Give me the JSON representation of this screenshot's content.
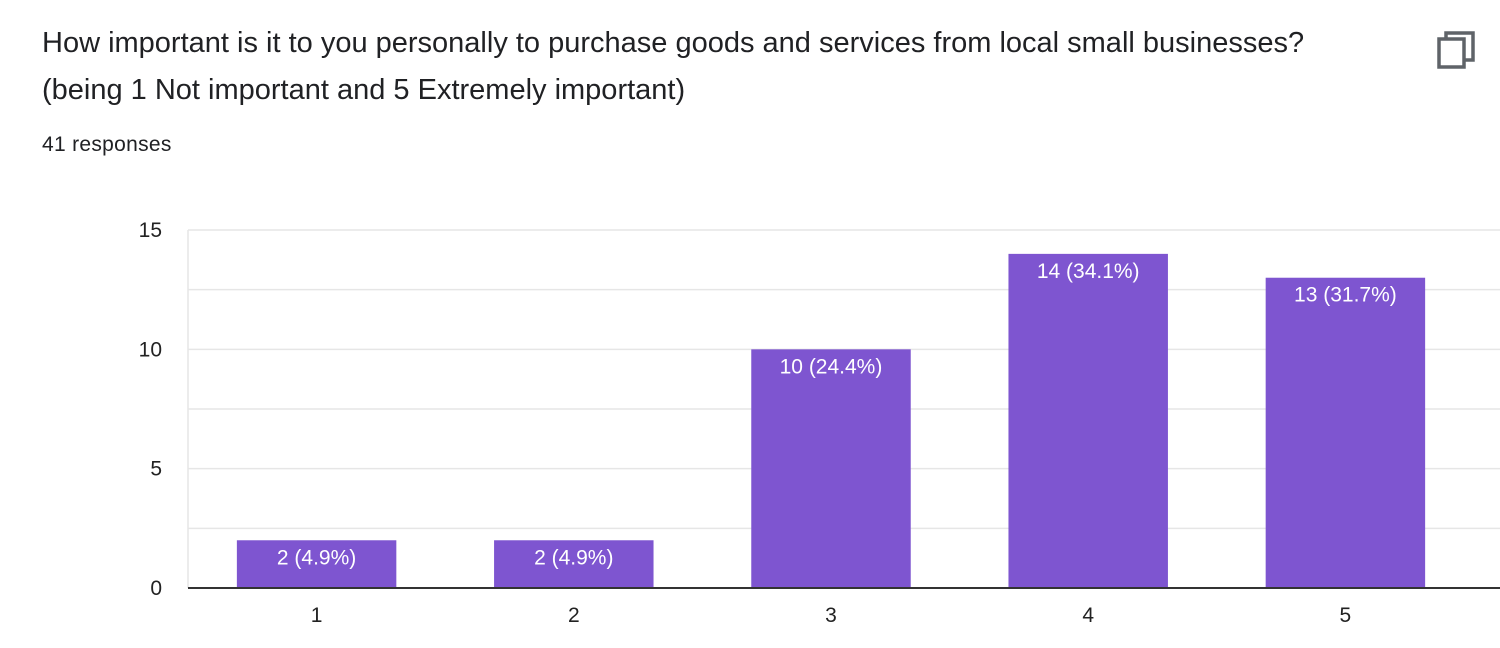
{
  "question": {
    "title": "How important is it to you personally to purchase goods and services from local small businesses? (being 1 Not important and 5 Extremely important)",
    "response_count": "41 responses",
    "copy_icon": "copy-icon"
  },
  "colors": {
    "bar": "#7e55d0",
    "grid": "#e6e6e6",
    "axis": "#333333",
    "text": "#202124"
  },
  "chart_data": {
    "type": "bar",
    "categories": [
      "1",
      "2",
      "3",
      "4",
      "5"
    ],
    "values": [
      2,
      2,
      10,
      14,
      13
    ],
    "data_labels": [
      "2 (4.9%)",
      "2 (4.9%)",
      "10 (24.4%)",
      "14 (34.1%)",
      "13 (31.7%)"
    ],
    "y_ticks": [
      "0",
      "5",
      "10",
      "15"
    ],
    "ylim": [
      0,
      15
    ],
    "grid": true,
    "legend": "none"
  }
}
